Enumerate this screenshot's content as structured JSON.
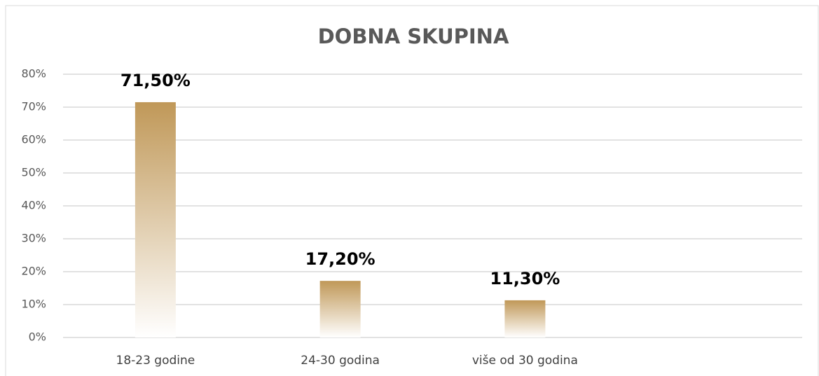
{
  "chart_data": {
    "type": "bar",
    "title": "DOBNA SKUPINA",
    "categories": [
      "18-23 godine",
      "24-30 godina",
      "više od 30 godina",
      null
    ],
    "values": [
      71.5,
      17.2,
      11.3,
      null
    ],
    "value_labels": [
      "71,50%",
      "17,20%",
      "11,30%",
      null
    ],
    "color": "#c09858",
    "ylim": [
      0,
      80
    ],
    "yticks": [
      {
        "value": 0,
        "label": "0%"
      },
      {
        "value": 10,
        "label": "10%"
      },
      {
        "value": 20,
        "label": "20%"
      },
      {
        "value": 30,
        "label": "30%"
      },
      {
        "value": 40,
        "label": "40%"
      },
      {
        "value": 50,
        "label": "50%"
      },
      {
        "value": 60,
        "label": "60%"
      },
      {
        "value": 70,
        "label": "70%"
      },
      {
        "value": 80,
        "label": "80%"
      }
    ],
    "grid": true
  }
}
